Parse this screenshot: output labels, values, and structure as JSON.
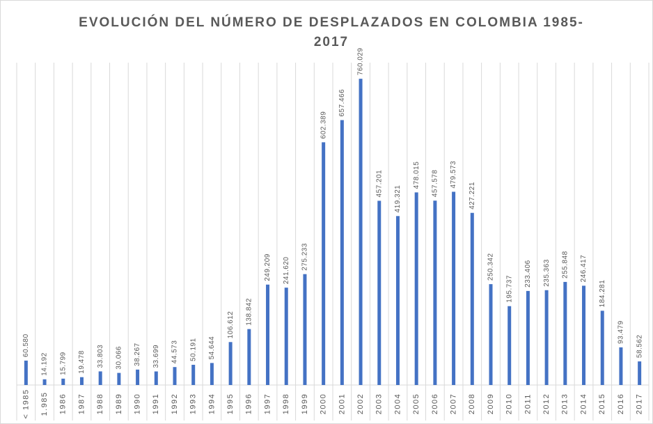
{
  "chart_data": {
    "type": "bar",
    "title": [
      "EVOLUCIÓN DEL NÚMERO DE DESPLAZADOS EN COLOMBIA 1985-",
      "2017"
    ],
    "categories": [
      "< 1985",
      "1.985",
      "1986",
      "1987",
      "1988",
      "1989",
      "1990",
      "1991",
      "1992",
      "1993",
      "1994",
      "1995",
      "1996",
      "1997",
      "1998",
      "1999",
      "2000",
      "2001",
      "2002",
      "2003",
      "2004",
      "2005",
      "2006",
      "2007",
      "2008",
      "2009",
      "2010",
      "2011",
      "2012",
      "2013",
      "2014",
      "2015",
      "2016",
      "2017"
    ],
    "values": [
      60580,
      14192,
      15799,
      19478,
      33803,
      30066,
      38267,
      33699,
      44573,
      50191,
      54644,
      106612,
      138842,
      249209,
      241620,
      275233,
      602389,
      657466,
      760029,
      457201,
      419321,
      478015,
      457578,
      479573,
      427221,
      250342,
      195737,
      233406,
      235363,
      255848,
      246417,
      184281,
      93479,
      58562
    ],
    "value_labels": [
      "60.580",
      "14.192",
      "15.799",
      "19.478",
      "33.803",
      "30.066",
      "38.267",
      "33.699",
      "44.573",
      "50.191",
      "54.644",
      "106.612",
      "138.842",
      "249.209",
      "241.620",
      "275.233",
      "602.389",
      "657.466",
      "760.029",
      "457.201",
      "419.321",
      "478.015",
      "457.578",
      "479.573",
      "427.221",
      "250.342",
      "195.737",
      "233.406",
      "235.363",
      "255.848",
      "246.417",
      "184.281",
      "93.479",
      "58.562"
    ],
    "color": "#4472c4",
    "ylim": [
      0,
      800000
    ],
    "grid": true
  }
}
